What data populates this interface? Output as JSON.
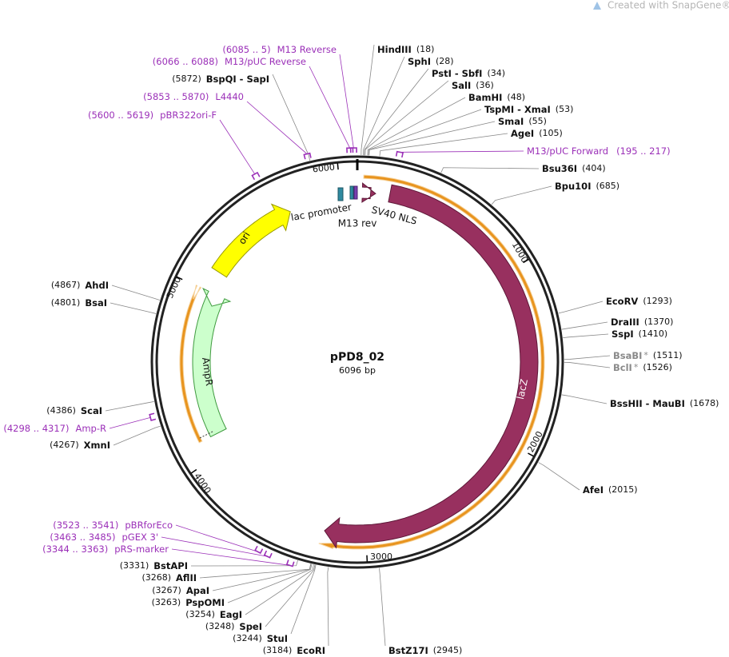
{
  "header": {
    "watermark": "Created with SnapGene®"
  },
  "plasmid": {
    "name": "pPD8_02",
    "length": 6096,
    "unit": "bp"
  },
  "ticks": [
    1000,
    2000,
    3000,
    4000,
    5000,
    6000
  ],
  "features": [
    "ori",
    "lac promoter",
    "M13 rev",
    "SV40 NLS",
    "lacZ",
    "AmpR"
  ],
  "sites": [
    {
      "name": "HindIII",
      "position": {
        "value": 18,
        "label": "(18)"
      }
    },
    {
      "name": "SphI",
      "position": {
        "value": 28,
        "label": "(28)"
      }
    },
    {
      "name": "PstI - SbfI",
      "position": {
        "value": 34,
        "label": "(34)"
      }
    },
    {
      "name": "SalI",
      "position": {
        "value": 36,
        "label": "(36)"
      }
    },
    {
      "name": "BamHI",
      "position": {
        "value": 48,
        "label": "(48)"
      }
    },
    {
      "name": "TspMI - XmaI",
      "position": {
        "value": 53,
        "label": "(53)"
      }
    },
    {
      "name": "SmaI",
      "position": {
        "value": 55,
        "label": "(55)"
      }
    },
    {
      "name": "AgeI",
      "position": {
        "value": 105,
        "label": "(105)"
      }
    },
    {
      "name": "Bsu36I",
      "position": {
        "value": 404,
        "label": "(404)"
      }
    },
    {
      "name": "Bpu10I",
      "position": {
        "value": 685,
        "label": "(685)"
      }
    },
    {
      "name": "EcoRV",
      "position": {
        "value": 1293,
        "label": "(1293)"
      }
    },
    {
      "name": "DraIII",
      "position": {
        "value": 1370,
        "label": "(1370)"
      }
    },
    {
      "name": "SspI",
      "position": {
        "value": 1410,
        "label": "(1410)"
      }
    },
    {
      "name": "BsaBI",
      "note": "*",
      "position": {
        "value": 1511,
        "label": "(1511)"
      }
    },
    {
      "name": "BclI",
      "note": "*",
      "position": {
        "value": 1526,
        "label": "(1526)"
      }
    },
    {
      "name": "BssHII - MauBI",
      "position": {
        "value": 1678,
        "label": "(1678)"
      }
    },
    {
      "name": "AfeI",
      "position": {
        "value": 2015,
        "label": "(2015)"
      }
    },
    {
      "name": "BstZ17I",
      "position": {
        "value": 2945,
        "label": "(2945)"
      }
    },
    {
      "name": "EcoRI",
      "position": {
        "value": 3184,
        "label": "(3184)"
      }
    },
    {
      "name": "StuI",
      "position": {
        "value": 3244,
        "label": "(3244)"
      }
    },
    {
      "name": "SpeI",
      "position": {
        "value": 3248,
        "label": "(3248)"
      }
    },
    {
      "name": "EagI",
      "position": {
        "value": 3254,
        "label": "(3254)"
      }
    },
    {
      "name": "PspOMI",
      "position": {
        "value": 3263,
        "label": "(3263)"
      }
    },
    {
      "name": "ApaI",
      "position": {
        "value": 3267,
        "label": "(3267)"
      }
    },
    {
      "name": "AflII",
      "position": {
        "value": 3268,
        "label": "(3268)"
      }
    },
    {
      "name": "BstAPI",
      "position": {
        "value": 3331,
        "label": "(3331)"
      }
    },
    {
      "name": "XmnI",
      "position": {
        "value": 4267,
        "label": "(4267)"
      }
    },
    {
      "name": "ScaI",
      "position": {
        "value": 4386,
        "label": "(4386)"
      }
    },
    {
      "name": "BsaI",
      "position": {
        "value": 4801,
        "label": "(4801)"
      }
    },
    {
      "name": "AhdI",
      "position": {
        "value": 4867,
        "label": "(4867)"
      }
    },
    {
      "name": "BspQI - SapI",
      "position": {
        "value": 5872,
        "label": "(5872)"
      }
    }
  ],
  "primers": [
    {
      "range": "(6085 .. 5)",
      "name": "M13 Reverse"
    },
    {
      "range": "(6066 .. 6088)",
      "name": "M13/pUC Reverse"
    },
    {
      "range": "(5853 .. 5870)",
      "name": "L4440"
    },
    {
      "range": "(5600 .. 5619)",
      "name": "pBR322ori-F"
    },
    {
      "range": "(195 .. 217)",
      "name": "M13/pUC Forward"
    },
    {
      "range": "(4298 .. 4317)",
      "name": "Amp-R"
    },
    {
      "range": "(3523 .. 3541)",
      "name": "pBRforEco"
    },
    {
      "range": "(3463 .. 3485)",
      "name": "pGEX 3'"
    },
    {
      "range": "(3344 .. 3363)",
      "name": "pRS-marker"
    }
  ]
}
